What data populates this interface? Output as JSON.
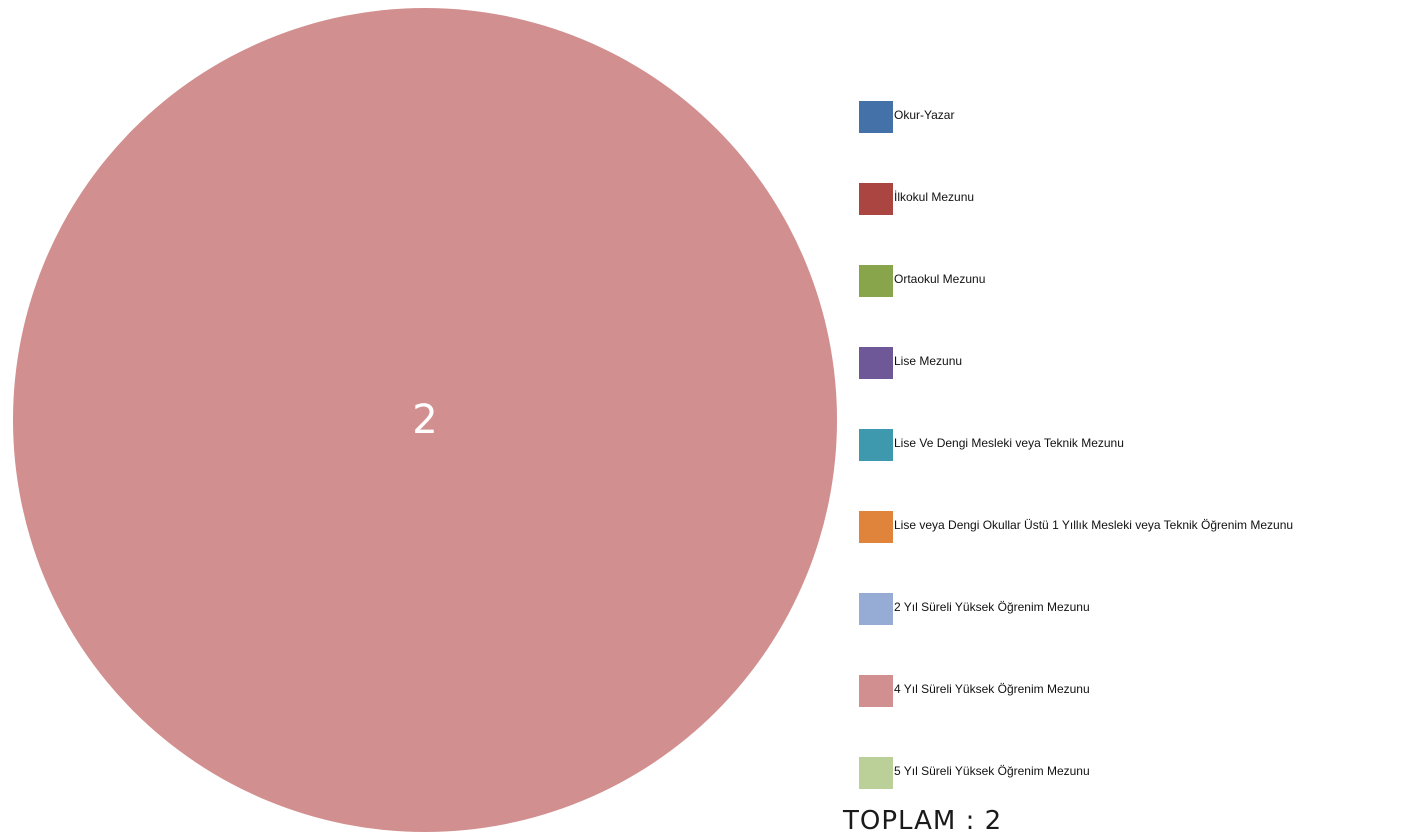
{
  "chart_data": {
    "type": "pie",
    "categories": [
      "Okur-Yazar",
      "İlkokul Mezunu",
      "Ortaokul Mezunu",
      "Lise Mezunu",
      "Lise Ve Dengi Mesleki veya Teknik Mezunu",
      "Lise veya Dengi Okullar Üstü 1 Yıllık Mesleki veya Teknik Öğrenim Mezunu",
      "2 Yıl Süreli Yüksek Öğrenim Mezunu",
      "4 Yıl Süreli Yüksek Öğrenim Mezunu",
      "5 Yıl Süreli Yüksek Öğrenim Mezunu"
    ],
    "values": [
      0,
      0,
      0,
      0,
      0,
      0,
      0,
      2,
      0
    ],
    "colors": [
      "#4472a8",
      "#aa4541",
      "#88a54b",
      "#6f5898",
      "#3e98ae",
      "#e0843b",
      "#96acd4",
      "#d28f8f",
      "#bbd098"
    ],
    "legend": "right",
    "total_label": "TOPLAM : 2"
  }
}
